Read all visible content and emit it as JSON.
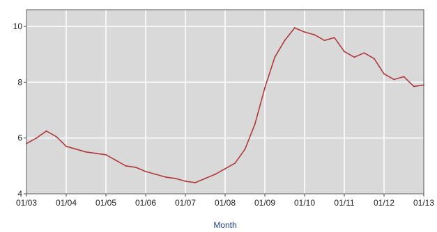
{
  "chart_data": {
    "type": "line",
    "title": "",
    "xlabel": "Month",
    "ylabel": "",
    "ylim": [
      4,
      10.6
    ],
    "xlim": [
      "2003-01",
      "2013-01"
    ],
    "grid": true,
    "x_tick_labels": [
      "01/03",
      "01/04",
      "01/05",
      "01/06",
      "01/07",
      "01/08",
      "01/09",
      "01/10",
      "01/11",
      "01/12",
      "01/13"
    ],
    "y_tick_labels": [
      "4",
      "6",
      "8",
      "10"
    ],
    "y_ticks": [
      4,
      6,
      8,
      10
    ],
    "colors": {
      "plot_bg": "#d9d9d9",
      "grid": "#ffffff",
      "line": "#b03a3a",
      "xlabel": "#1f3f8f"
    },
    "series": [
      {
        "x": [
          "2003-01",
          "2003-04",
          "2003-07",
          "2003-10",
          "2004-01",
          "2004-04",
          "2004-07",
          "2004-10",
          "2005-01",
          "2005-04",
          "2005-07",
          "2005-10",
          "2006-01",
          "2006-04",
          "2006-07",
          "2006-10",
          "2007-01",
          "2007-04",
          "2007-07",
          "2007-10",
          "2008-01",
          "2008-04",
          "2008-07",
          "2008-10",
          "2009-01",
          "2009-04",
          "2009-07",
          "2009-10",
          "2010-01",
          "2010-04",
          "2010-07",
          "2010-10",
          "2011-01",
          "2011-04",
          "2011-07",
          "2011-10",
          "2012-01",
          "2012-04",
          "2012-07",
          "2012-10",
          "2013-01"
        ],
        "values": [
          5.8,
          6.0,
          6.25,
          6.05,
          5.7,
          5.6,
          5.5,
          5.45,
          5.4,
          5.2,
          5.0,
          4.95,
          4.8,
          4.7,
          4.6,
          4.55,
          4.45,
          4.4,
          4.55,
          4.7,
          4.9,
          5.1,
          5.6,
          6.5,
          7.8,
          8.9,
          9.5,
          9.95,
          9.8,
          9.7,
          9.5,
          9.6,
          9.1,
          8.9,
          9.05,
          8.85,
          8.3,
          8.1,
          8.2,
          7.85,
          7.9
        ]
      }
    ]
  }
}
